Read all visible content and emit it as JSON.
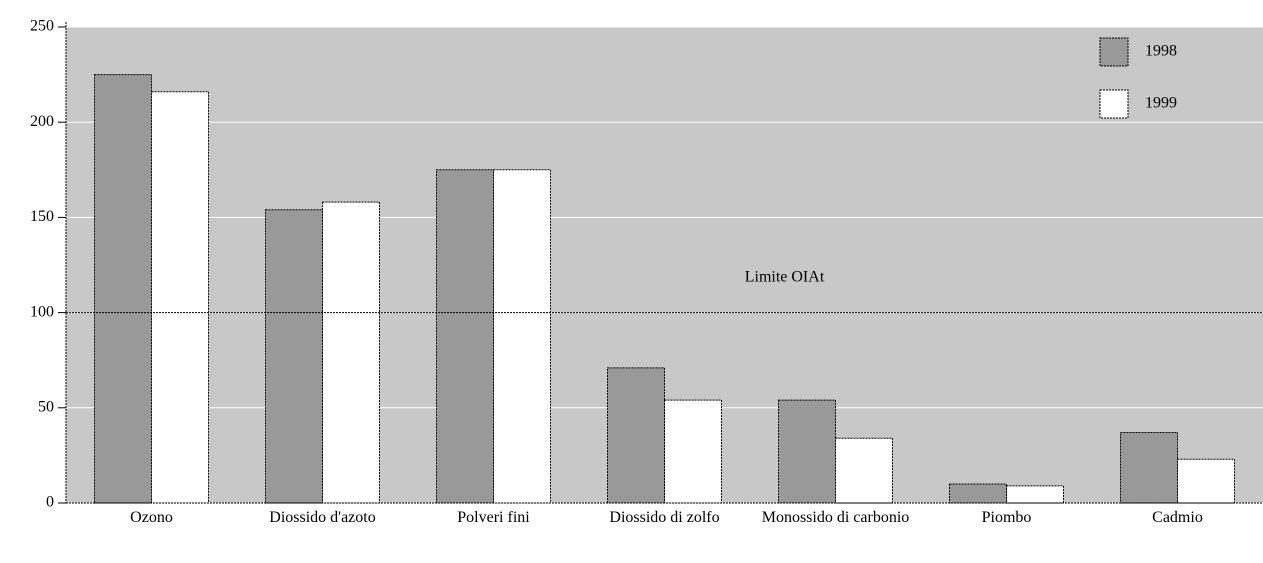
{
  "chart_data": {
    "type": "bar",
    "categories": [
      "Ozono",
      "Diossido d'azoto",
      "Polveri fini",
      "Diossido di zolfo",
      "Monossido di carbonio",
      "Piombo",
      "Cadmio"
    ],
    "series": [
      {
        "name": "1998",
        "color": "#999999",
        "values": [
          225,
          154,
          175,
          71,
          54,
          10,
          37
        ]
      },
      {
        "name": "1999",
        "color": "#ffffff",
        "values": [
          216,
          158,
          175,
          54,
          34,
          9,
          23
        ]
      }
    ],
    "ylim": [
      0,
      250
    ],
    "yticks": [
      0,
      50,
      100,
      150,
      200,
      250
    ],
    "grid": true,
    "reference_line": {
      "value": 100,
      "label": "Limite OIAt"
    },
    "legend": "top-right"
  }
}
